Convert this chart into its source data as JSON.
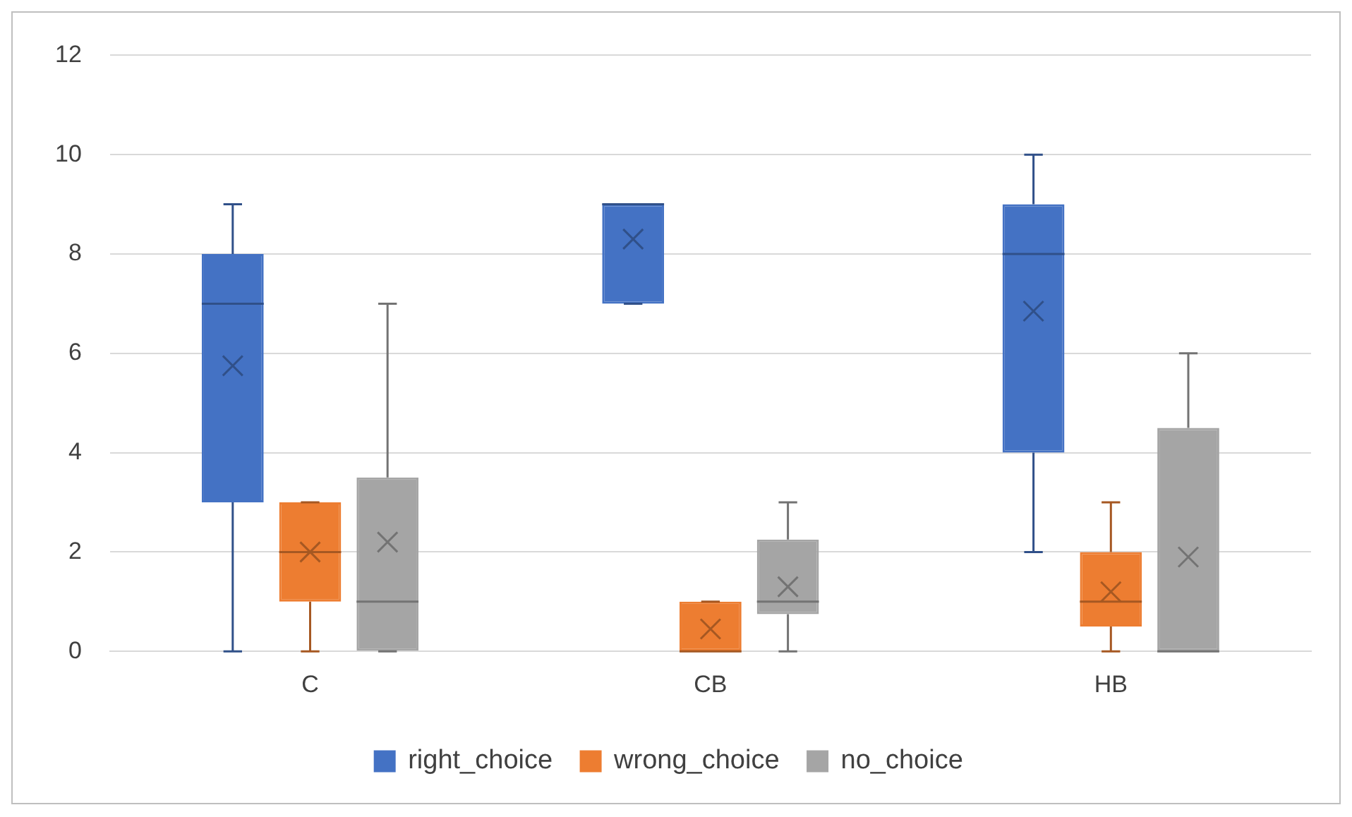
{
  "chart_data": {
    "type": "box",
    "categories": [
      "C",
      "CB",
      "HB"
    ],
    "ylim": [
      0,
      12
    ],
    "yticks": [
      0,
      2,
      4,
      6,
      8,
      10,
      12
    ],
    "grid": "y",
    "legend": "bottom",
    "series": [
      {
        "name": "right_choice",
        "color": "#4472c4",
        "boxes": [
          {
            "low": 0,
            "q1": 3,
            "median": 7,
            "q3": 8,
            "high": 9,
            "mean": 5.75
          },
          {
            "low": 7,
            "q1": 7,
            "median": 9,
            "q3": 9,
            "high": 9,
            "mean": 8.3
          },
          {
            "low": 2,
            "q1": 4,
            "median": 8,
            "q3": 9,
            "high": 10,
            "mean": 6.85
          }
        ]
      },
      {
        "name": "wrong_choice",
        "color": "#ed7d31",
        "boxes": [
          {
            "low": 0,
            "q1": 1,
            "median": 2,
            "q3": 3,
            "high": 3,
            "mean": 2
          },
          {
            "low": 0,
            "q1": 0,
            "median": 0,
            "q3": 1,
            "high": 1,
            "mean": 0.45
          },
          {
            "low": 0,
            "q1": 0.5,
            "median": 1,
            "q3": 2,
            "high": 3,
            "mean": 1.2
          }
        ]
      },
      {
        "name": "no_choice",
        "color": "#a5a5a5",
        "boxes": [
          {
            "low": 0,
            "q1": 0,
            "median": 1,
            "q3": 3.5,
            "high": 7,
            "mean": 2.2
          },
          {
            "low": 0,
            "q1": 0.75,
            "median": 1,
            "q3": 2.25,
            "high": 3,
            "mean": 1.3
          },
          {
            "low": 0,
            "q1": 0,
            "median": 0,
            "q3": 4.5,
            "high": 6,
            "mean": 1.9
          }
        ]
      }
    ]
  }
}
